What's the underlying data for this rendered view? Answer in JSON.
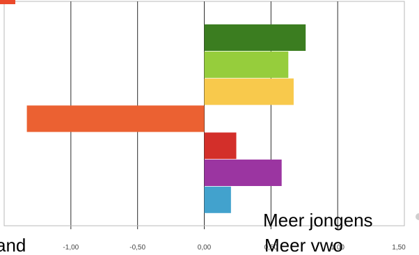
{
  "chart_data": {
    "type": "bar",
    "orientation": "horizontal",
    "title": "",
    "xlabel": "",
    "ylabel": "",
    "xlim": [
      -1.5,
      1.5
    ],
    "x_ticks": [
      "-1,00",
      "-0,50",
      "0,00",
      "0,50",
      "1,00",
      "1,50"
    ],
    "grid": "vertical",
    "values": [
      0.76,
      0.63,
      0.67,
      -1.33,
      0.24,
      0.58,
      0.2
    ],
    "colors": [
      "#3b7d20",
      "#96cd3c",
      "#f8c94c",
      "#eb6132",
      "#d32f2a",
      "#9b35a1",
      "#42a2cd"
    ],
    "annotations": [
      "Meer jongens",
      "Meer vwo"
    ],
    "partial_text": [
      "and"
    ]
  }
}
